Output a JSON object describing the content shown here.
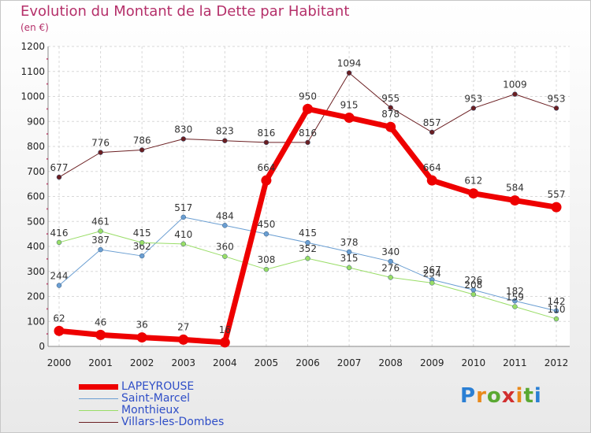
{
  "title": "Evolution du Montant de la Dette par Habitant",
  "subtitle": "(en €)",
  "brand": {
    "text": "Proxiti",
    "letter_colors": [
      "#2a7fd4",
      "#e9891b",
      "#5aa832",
      "#d12f2f",
      "#e9891b",
      "#5aa832",
      "#2a7fd4"
    ]
  },
  "chart_data": {
    "type": "line",
    "title": "Evolution du Montant de la Dette par Habitant",
    "ylabel": "(en €)",
    "x": [
      "2000",
      "2001",
      "2002",
      "2003",
      "2004",
      "2005",
      "2006",
      "2007",
      "2008",
      "2009",
      "2010",
      "2011",
      "2012"
    ],
    "ylim": [
      0,
      1200
    ],
    "yticks": [
      0,
      100,
      200,
      300,
      400,
      500,
      600,
      700,
      800,
      900,
      1000,
      1100,
      1200
    ],
    "grid": true,
    "legend": "bottom-left",
    "series": [
      {
        "name": "Villars-les-Dombes",
        "color": "#6b1f22",
        "width": 1,
        "values": [
          677,
          776,
          786,
          830,
          823,
          816,
          816,
          1094,
          955,
          857,
          953,
          1009,
          953
        ]
      },
      {
        "name": "Saint-Marcel",
        "color": "#6a9ed2",
        "width": 1,
        "values": [
          244,
          387,
          362,
          517,
          484,
          450,
          415,
          378,
          340,
          267,
          226,
          182,
          142
        ]
      },
      {
        "name": "Monthieux",
        "color": "#99dd66",
        "width": 1,
        "values": [
          416,
          461,
          415,
          410,
          360,
          308,
          352,
          315,
          276,
          254,
          208,
          159,
          110
        ]
      },
      {
        "name": "LAPEYROUSE",
        "color": "#ee0000",
        "width": 7,
        "values": [
          62,
          46,
          36,
          27,
          16,
          664,
          950,
          915,
          878,
          664,
          612,
          584,
          557
        ]
      }
    ],
    "legend_order": [
      "LAPEYROUSE",
      "Saint-Marcel",
      "Monthieux",
      "Villars-les-Dombes"
    ]
  }
}
